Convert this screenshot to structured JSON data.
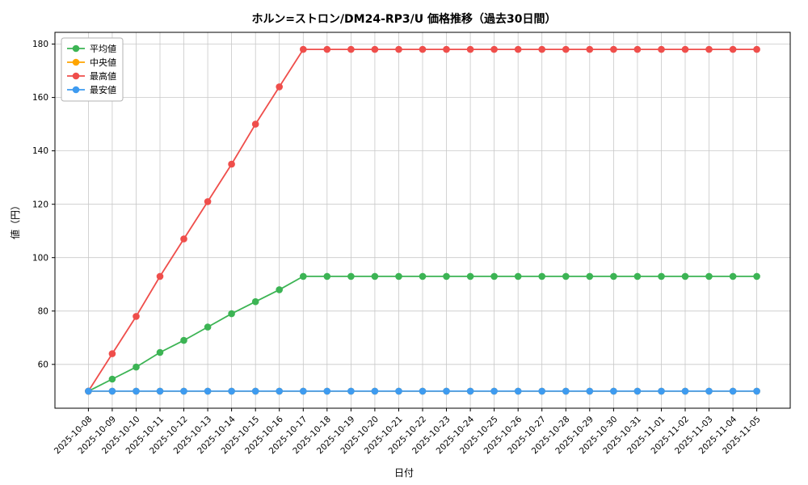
{
  "figure": {
    "title": "ホルン=ストロン/DM24-RP3/U 価格推移（過去30日間）",
    "xlabel": "日付",
    "ylabel": "値（円）"
  },
  "chart_data": {
    "type": "line",
    "title": "ホルン=ストロン/DM24-RP3/U 価格推移（過去30日間）",
    "xlabel": "日付",
    "ylabel": "値（円）",
    "grid": true,
    "legend_position": "upper left",
    "ylim": [
      43.6,
      184.4
    ],
    "yticks": [
      60,
      80,
      100,
      120,
      140,
      160,
      180
    ],
    "categories": [
      "2025-10-08",
      "2025-10-09",
      "2025-10-10",
      "2025-10-11",
      "2025-10-12",
      "2025-10-13",
      "2025-10-14",
      "2025-10-15",
      "2025-10-16",
      "2025-10-17",
      "2025-10-18",
      "2025-10-19",
      "2025-10-20",
      "2025-10-21",
      "2025-10-22",
      "2025-10-23",
      "2025-10-24",
      "2025-10-25",
      "2025-10-26",
      "2025-10-27",
      "2025-10-28",
      "2025-10-29",
      "2025-10-30",
      "2025-10-31",
      "2025-11-01",
      "2025-11-02",
      "2025-11-03",
      "2025-11-04",
      "2025-11-05"
    ],
    "series": [
      {
        "name": "平均値",
        "color": "#3cb454",
        "values": [
          50,
          54.5,
          59,
          64.5,
          69,
          74,
          79,
          83.5,
          88,
          93,
          93,
          93,
          93,
          93,
          93,
          93,
          93,
          93,
          93,
          93,
          93,
          93,
          93,
          93,
          93,
          93,
          93,
          93,
          93
        ]
      },
      {
        "name": "中央値",
        "color": "#ffa500",
        "values": [
          50,
          50,
          50,
          50,
          50,
          50,
          50,
          50,
          50,
          50,
          50,
          50,
          50,
          50,
          50,
          50,
          50,
          50,
          50,
          50,
          50,
          50,
          50,
          50,
          50,
          50,
          50,
          50,
          50
        ]
      },
      {
        "name": "最高値",
        "color": "#ef4e4b",
        "values": [
          50,
          64,
          78,
          93,
          107,
          121,
          135,
          150,
          164,
          178,
          178,
          178,
          178,
          178,
          178,
          178,
          178,
          178,
          178,
          178,
          178,
          178,
          178,
          178,
          178,
          178,
          178,
          178,
          178
        ]
      },
      {
        "name": "最安値",
        "color": "#3e9bf0",
        "values": [
          50,
          50,
          50,
          50,
          50,
          50,
          50,
          50,
          50,
          50,
          50,
          50,
          50,
          50,
          50,
          50,
          50,
          50,
          50,
          50,
          50,
          50,
          50,
          50,
          50,
          50,
          50,
          50,
          50
        ]
      }
    ],
    "colors": {
      "grid": "#c8c8c8",
      "axis": "#000000",
      "legend_border": "#b3b3b3",
      "background": "#ffffff"
    }
  }
}
